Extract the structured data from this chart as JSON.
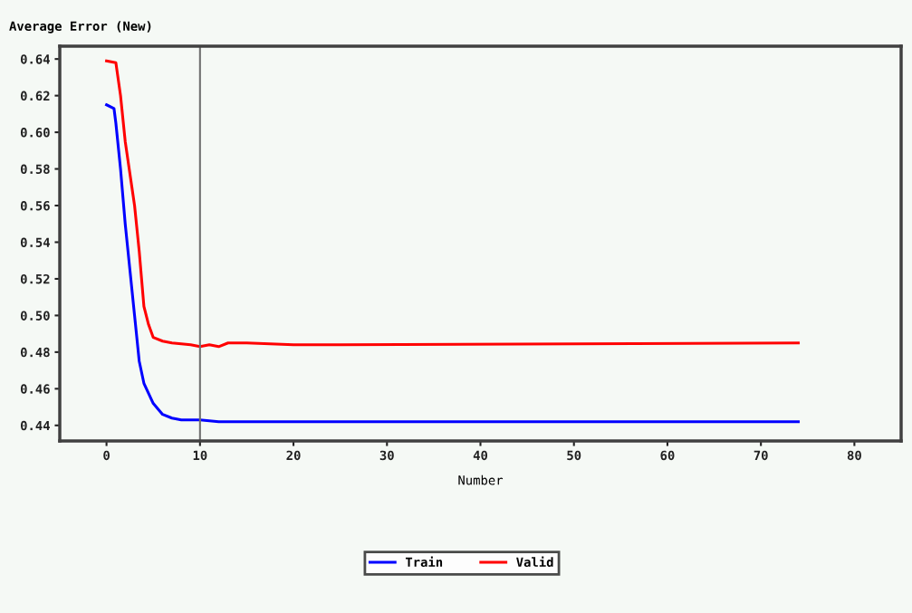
{
  "chart_data": {
    "type": "line",
    "ylabel": "Average Error (New)",
    "xlabel": "Number",
    "series": [
      {
        "name": "Train",
        "color": "#0000ff",
        "x": [
          0,
          0.8,
          1,
          1.5,
          2,
          2.5,
          3,
          3.5,
          4,
          5,
          6,
          7,
          8,
          10,
          12,
          74
        ],
        "values": [
          0.615,
          0.613,
          0.605,
          0.58,
          0.55,
          0.525,
          0.5,
          0.475,
          0.463,
          0.452,
          0.446,
          0.444,
          0.443,
          0.443,
          0.442,
          0.442
        ]
      },
      {
        "name": "Valid",
        "color": "#ff0000",
        "x": [
          0,
          1,
          1.5,
          2,
          3,
          3.5,
          4,
          4.5,
          5,
          6,
          7,
          9,
          10,
          11,
          12,
          13,
          15,
          20,
          25,
          74
        ],
        "values": [
          0.639,
          0.638,
          0.62,
          0.595,
          0.56,
          0.535,
          0.505,
          0.495,
          0.488,
          0.486,
          0.485,
          0.484,
          0.483,
          0.484,
          0.483,
          0.485,
          0.485,
          0.484,
          0.484,
          0.485
        ]
      }
    ],
    "xlim": [
      -5,
      85
    ],
    "xticks": [
      0,
      10,
      20,
      30,
      40,
      50,
      60,
      70,
      80
    ],
    "ylim": [
      0.4315,
      0.647
    ],
    "yticks": [
      0.44,
      0.46,
      0.48,
      {
        "value": 0.5,
        "label": "0.50"
      },
      0.52,
      0.54,
      0.56,
      0.58,
      {
        "value": 0.6,
        "label": "0.60"
      },
      0.62,
      0.64
    ],
    "ref_lines": [
      {
        "axis": "x",
        "value": 10,
        "color": "#707070"
      }
    ],
    "grid": false,
    "legend": "bottom",
    "marker": "none",
    "line_style": "solid"
  }
}
